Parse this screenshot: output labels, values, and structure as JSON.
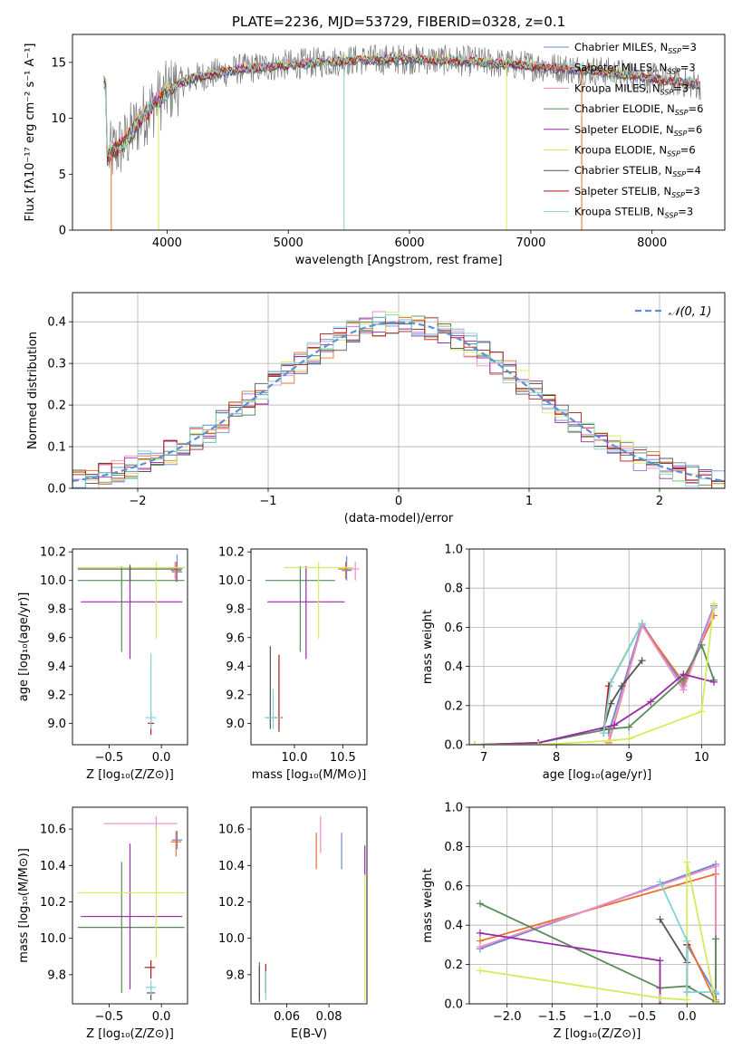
{
  "figure": {
    "title": "PLATE=2236, MJD=53729, FIBERID=0328, z=0.1"
  },
  "colors": {
    "chabrier_miles": "#6b86d6",
    "salpeter_miles": "#e8702a",
    "kroupa_miles": "#f08cc8",
    "chabrier_elodie": "#5a8a5a",
    "salpeter_elodie": "#9a2aaa",
    "kroupa_elodie": "#d4ec5a",
    "chabrier_stelib": "#555555",
    "salpeter_stelib": "#b01818",
    "kroupa_stelib": "#7fd4d4"
  },
  "chart_data": [
    {
      "id": "spectrum",
      "type": "line",
      "title": "PLATE=2236, MJD=53729, FIBERID=0328, z=0.1",
      "xlabel": "wavelength [Angstrom, rest frame]",
      "ylabel": "Flux [fλ10⁻¹⁷ erg cm⁻² s⁻¹ A⁻¹]",
      "xlim": [
        3220,
        8600
      ],
      "ylim": [
        0,
        17.5
      ],
      "xticks": [
        "4000",
        "5000",
        "6000",
        "7000",
        "8000"
      ],
      "yticks": [
        "0",
        "5",
        "10",
        "15"
      ],
      "grid": false,
      "legend_position": "top-right",
      "series": [
        {
          "name": "Chabrier MILES, N",
          "sub": "SSP",
          "suffix": "=3",
          "color": "#6b86d6"
        },
        {
          "name": "Salpeter MILES, N",
          "sub": "SSP",
          "suffix": "=3",
          "color": "#e8702a"
        },
        {
          "name": "Kroupa MILES, N",
          "sub": "SSP",
          "suffix": "=3",
          "color": "#f08cc8"
        },
        {
          "name": "Chabrier ELODIE, N",
          "sub": "SSP",
          "suffix": "=6",
          "color": "#5a8a5a"
        },
        {
          "name": "Salpeter ELODIE, N",
          "sub": "SSP",
          "suffix": "=6",
          "color": "#9a2aaa"
        },
        {
          "name": "Kroupa ELODIE, N",
          "sub": "SSP",
          "suffix": "=6",
          "color": "#d4ec5a"
        },
        {
          "name": "Chabrier STELIB, N",
          "sub": "SSP",
          "suffix": "=4",
          "color": "#555555"
        },
        {
          "name": "Salpeter STELIB, N",
          "sub": "SSP",
          "suffix": "=3",
          "color": "#b01818"
        },
        {
          "name": "Kroupa STELIB, N",
          "sub": "SSP",
          "suffix": "=3",
          "color": "#7fd4d4"
        }
      ],
      "continuum": {
        "x": [
          3500,
          3650,
          3800,
          3950,
          4100,
          4300,
          4600,
          5000,
          5500,
          6000,
          6500,
          7000,
          7500,
          8000,
          8400
        ],
        "y": [
          6.5,
          7.8,
          10.2,
          11.8,
          13.2,
          13.8,
          14.4,
          14.8,
          15.2,
          15.3,
          15.1,
          14.7,
          14.3,
          13.6,
          13.0
        ]
      },
      "dips": [
        {
          "x": 3540,
          "y": 0.0
        },
        {
          "x": 3930,
          "y": 0.0
        },
        {
          "x": 5460,
          "y": 0.0
        },
        {
          "x": 6800,
          "y": 0.0
        },
        {
          "x": 7420,
          "y": 0.0
        }
      ]
    },
    {
      "id": "residuals",
      "type": "histogram",
      "xlabel": "(data-model)/error",
      "ylabel": "Normed distribution",
      "xlim": [
        -2.5,
        2.5
      ],
      "ylim": [
        0,
        0.47
      ],
      "xticks": [
        "−2",
        "−1",
        "0",
        "1",
        "2"
      ],
      "yticks": [
        "0.0",
        "0.1",
        "0.2",
        "0.3",
        "0.4"
      ],
      "grid": true,
      "legend_position": "top-right",
      "reference": {
        "name": "𝒩(0, 1)",
        "color": "#5b8fd6"
      }
    },
    {
      "id": "age_vs_Z",
      "type": "errorbar",
      "xlabel": "Z [log₁₀(Z/Z⊙)]",
      "ylabel": "age  [log₁₀(age/yr)]",
      "xlim": [
        -0.85,
        0.25
      ],
      "ylim": [
        8.85,
        10.22
      ],
      "xticks": [
        "−0.5",
        "0.0"
      ],
      "yticks": [
        "9.0",
        "9.2",
        "9.4",
        "9.6",
        "9.8",
        "10.0",
        "10.2"
      ],
      "points": [
        {
          "color": "#6b86d6",
          "x": 0.15,
          "xerr": [
            0.05,
            0.05
          ],
          "y": 10.06,
          "yerr": [
            0.07,
            0.12
          ]
        },
        {
          "color": "#e8702a",
          "x": 0.14,
          "xerr": [
            0.05,
            0.05
          ],
          "y": 10.07,
          "yerr": [
            0.08,
            0.06
          ]
        },
        {
          "color": "#f08cc8",
          "x": 0.13,
          "xerr": [
            0.05,
            0.05
          ],
          "y": 10.09,
          "yerr": [
            0.08,
            0.04
          ]
        },
        {
          "color": "#5a8a5a",
          "x": -0.38,
          "xerr": [
            0.42,
            0.6
          ],
          "y": 10.0,
          "yerr": [
            0.5,
            0.1
          ]
        },
        {
          "color": "#9a2aaa",
          "x": -0.3,
          "xerr": [
            0.47,
            0.5
          ],
          "y": 9.85,
          "yerr": [
            0.4,
            0.25
          ]
        },
        {
          "color": "#d4ec5a",
          "x": -0.05,
          "xerr": [
            0.75,
            0.28
          ],
          "y": 10.09,
          "yerr": [
            0.5,
            0.04
          ]
        },
        {
          "color": "#555555",
          "x": -0.3,
          "xerr": [
            0.5,
            0.5
          ],
          "y": 10.08,
          "yerr": [
            0.08,
            0.03
          ]
        },
        {
          "color": "#b01818",
          "x": -0.1,
          "xerr": [
            0.03,
            0.03
          ],
          "y": 9.0,
          "yerr": [
            0.08,
            0.08
          ]
        },
        {
          "color": "#7fd4d4",
          "x": -0.1,
          "xerr": [
            0.05,
            0.05
          ],
          "y": 9.04,
          "yerr": [
            0.08,
            0.45
          ]
        }
      ]
    },
    {
      "id": "age_vs_mass",
      "type": "errorbar",
      "xlabel": "mass [log₁₀(M/M⊙)]",
      "xlim": [
        9.55,
        10.75
      ],
      "ylim": [
        8.85,
        10.22
      ],
      "xticks": [
        "10.0",
        "10.5"
      ],
      "yticks": [
        "9.0",
        "9.2",
        "9.4",
        "9.6",
        "9.8",
        "10.0",
        "10.2"
      ],
      "points": [
        {
          "color": "#6b86d6",
          "x": 10.54,
          "xerr": [
            0.05,
            0.05
          ],
          "y": 10.07,
          "yerr": [
            0.07,
            0.1
          ]
        },
        {
          "color": "#e8702a",
          "x": 10.53,
          "xerr": [
            0.08,
            0.06
          ],
          "y": 10.08,
          "yerr": [
            0.07,
            0.05
          ]
        },
        {
          "color": "#f08cc8",
          "x": 10.63,
          "xerr": [
            0.04,
            0.04
          ],
          "y": 10.08,
          "yerr": [
            0.08,
            0.05
          ]
        },
        {
          "color": "#5a8a5a",
          "x": 10.06,
          "xerr": [
            0.36,
            0.36
          ],
          "y": 10.0,
          "yerr": [
            0.5,
            0.1
          ]
        },
        {
          "color": "#9a2aaa",
          "x": 10.12,
          "xerr": [
            0.4,
            0.4
          ],
          "y": 9.85,
          "yerr": [
            0.4,
            0.25
          ]
        },
        {
          "color": "#d4ec5a",
          "x": 10.25,
          "xerr": [
            0.36,
            0.36
          ],
          "y": 10.09,
          "yerr": [
            0.5,
            0.04
          ]
        },
        {
          "color": "#555555",
          "x": 9.75,
          "xerr": [
            0.04,
            0.04
          ],
          "y": 9.04,
          "yerr": [
            0.08,
            0.5
          ]
        },
        {
          "color": "#b01818",
          "x": 9.84,
          "xerr": [
            0.06,
            0.04
          ],
          "y": 9.04,
          "yerr": [
            0.1,
            0.44
          ]
        },
        {
          "color": "#7fd4d4",
          "x": 9.78,
          "xerr": [
            0.09,
            0.09
          ],
          "y": 9.04,
          "yerr": [
            0.08,
            0.2
          ]
        }
      ]
    },
    {
      "id": "weight_vs_age",
      "type": "line",
      "xlabel": "age  [log₁₀(age/yr)]",
      "ylabel": "mass weight",
      "xlim": [
        6.8,
        10.32
      ],
      "ylim": [
        0,
        1
      ],
      "xticks": [
        "7",
        "8",
        "9",
        "10"
      ],
      "yticks": [
        "0.0",
        "0.2",
        "0.4",
        "0.6",
        "0.8",
        "1.0"
      ],
      "grid": true,
      "series": [
        {
          "color": "#6b86d6",
          "x": [
            8.72,
            9.18,
            9.75,
            10.17
          ],
          "y": [
            0.06,
            0.62,
            0.3,
            0.71
          ]
        },
        {
          "color": "#e8702a",
          "x": [
            8.72,
            9.18,
            9.75,
            10.17
          ],
          "y": [
            0.01,
            0.61,
            0.32,
            0.66
          ]
        },
        {
          "color": "#f08cc8",
          "x": [
            8.72,
            9.18,
            9.75,
            10.17
          ],
          "y": [
            0.02,
            0.61,
            0.28,
            0.7
          ]
        },
        {
          "color": "#5a8a5a",
          "x": [
            6.88,
            7.75,
            8.72,
            9.0,
            9.75,
            10.0,
            10.17
          ],
          "y": [
            0.0,
            0.01,
            0.08,
            0.09,
            0.34,
            0.51,
            0.33
          ]
        },
        {
          "color": "#9a2aaa",
          "x": [
            6.88,
            7.75,
            8.8,
            9.3,
            9.75,
            10.17
          ],
          "y": [
            0.0,
            0.01,
            0.1,
            0.22,
            0.36,
            0.32
          ]
        },
        {
          "color": "#d4ec5a",
          "x": [
            6.88,
            7.75,
            8.72,
            9.0,
            10.0,
            10.17
          ],
          "y": [
            0.0,
            0.0,
            0.02,
            0.03,
            0.17,
            0.72
          ]
        },
        {
          "color": "#555555",
          "x": [
            8.65,
            8.75,
            8.9,
            9.18
          ],
          "y": [
            0.08,
            0.21,
            0.3,
            0.43
          ]
        },
        {
          "color": "#b01818",
          "x": [
            8.65,
            8.72,
            9.18
          ],
          "y": [
            0.06,
            0.3,
            0.62
          ]
        },
        {
          "color": "#7fd4d4",
          "x": [
            8.65,
            8.75,
            9.18
          ],
          "y": [
            0.06,
            0.32,
            0.62
          ]
        }
      ]
    },
    {
      "id": "mass_vs_Z",
      "type": "errorbar",
      "xlabel": "Z [log₁₀(Z/Z⊙)]",
      "ylabel": "mass [log₁₀(M/M⊙)]",
      "xlim": [
        -0.85,
        0.25
      ],
      "ylim": [
        9.64,
        10.72
      ],
      "xticks": [
        "−0.5",
        "0.0"
      ],
      "yticks": [
        "9.8",
        "10.0",
        "10.2",
        "10.4",
        "10.6"
      ],
      "points": [
        {
          "color": "#6b86d6",
          "x": 0.15,
          "xerr": [
            0.05,
            0.05
          ],
          "y": 10.54,
          "yerr": [
            0.05,
            0.05
          ]
        },
        {
          "color": "#e8702a",
          "x": 0.14,
          "xerr": [
            0.05,
            0.05
          ],
          "y": 10.53,
          "yerr": [
            0.08,
            0.06
          ]
        },
        {
          "color": "#f08cc8",
          "x": -0.05,
          "xerr": [
            0.5,
            0.2
          ],
          "y": 10.63,
          "yerr": [
            0.04,
            0.04
          ]
        },
        {
          "color": "#5a8a5a",
          "x": -0.38,
          "xerr": [
            0.42,
            0.6
          ],
          "y": 10.06,
          "yerr": [
            0.36,
            0.36
          ]
        },
        {
          "color": "#9a2aaa",
          "x": -0.3,
          "xerr": [
            0.47,
            0.5
          ],
          "y": 10.12,
          "yerr": [
            0.4,
            0.4
          ]
        },
        {
          "color": "#d4ec5a",
          "x": -0.05,
          "xerr": [
            0.75,
            0.28
          ],
          "y": 10.25,
          "yerr": [
            0.36,
            0.36
          ]
        },
        {
          "color": "#555555",
          "x": -0.1,
          "xerr": [
            0.04,
            0.04
          ],
          "y": 9.7,
          "yerr": [
            0.04,
            0.04
          ]
        },
        {
          "color": "#b01818",
          "x": -0.1,
          "xerr": [
            0.06,
            0.04
          ],
          "y": 9.84,
          "yerr": [
            0.06,
            0.04
          ]
        },
        {
          "color": "#7fd4d4",
          "x": -0.1,
          "xerr": [
            0.05,
            0.05
          ],
          "y": 9.73,
          "yerr": [
            0.04,
            0.04
          ]
        }
      ]
    },
    {
      "id": "mass_vs_ebv",
      "type": "errorbar",
      "xlabel": "E(B-V)",
      "xlim": [
        0.043,
        0.098
      ],
      "ylim": [
        9.64,
        10.72
      ],
      "xticks": [
        "0.06",
        "0.08"
      ],
      "yticks": [
        "9.8",
        "10.0",
        "10.2",
        "10.4",
        "10.6"
      ],
      "points": [
        {
          "color": "#6b86d6",
          "x": 0.086,
          "y": 10.48,
          "yerr": [
            0.1,
            0.1
          ]
        },
        {
          "color": "#e8702a",
          "x": 0.074,
          "y": 10.48,
          "yerr": [
            0.1,
            0.1
          ]
        },
        {
          "color": "#f08cc8",
          "x": 0.076,
          "y": 10.57,
          "yerr": [
            0.1,
            0.1
          ]
        },
        {
          "color": "#5a8a5a",
          "x": 0.047,
          "y": 9.77,
          "yerr": [
            0.1,
            0.1
          ]
        },
        {
          "color": "#9a2aaa",
          "x": 0.097,
          "y": 10.43,
          "yerr": [
            0.08,
            0.08
          ]
        },
        {
          "color": "#d4ec5a",
          "x": 0.097,
          "y": 10.0,
          "yerr": [
            0.35,
            0.35
          ]
        },
        {
          "color": "#555555",
          "x": 0.047,
          "y": 9.75,
          "yerr": [
            0.1,
            0.1
          ]
        },
        {
          "color": "#b01818",
          "x": 0.05,
          "y": 9.78,
          "yerr": [
            0.08,
            0.08
          ]
        },
        {
          "color": "#7fd4d4",
          "x": 0.05,
          "y": 9.74,
          "yerr": [
            0.08,
            0.08
          ]
        }
      ]
    },
    {
      "id": "weight_vs_Z",
      "type": "line",
      "xlabel": "Z [log₁₀(Z/Z⊙)]",
      "ylabel": "mass weight",
      "xlim": [
        -2.42,
        0.42
      ],
      "ylim": [
        0,
        1
      ],
      "xticks": [
        "−2.0",
        "−1.5",
        "−1.0",
        "−0.5",
        "0.0"
      ],
      "yticks": [
        "0.0",
        "0.2",
        "0.4",
        "0.6",
        "0.8",
        "1.0"
      ],
      "grid": true,
      "series": [
        {
          "color": "#6b86d6",
          "x": [
            -2.3,
            0.32,
            0.32,
            0.0
          ],
          "y": [
            0.28,
            0.71,
            0.05,
            0.3
          ]
        },
        {
          "color": "#e8702a",
          "x": [
            -2.3,
            0.32,
            0.32,
            0.0
          ],
          "y": [
            0.32,
            0.66,
            0.01,
            0.32
          ]
        },
        {
          "color": "#f08cc8",
          "x": [
            -2.3,
            0.32,
            0.32
          ],
          "y": [
            0.29,
            0.7,
            0.02
          ]
        },
        {
          "color": "#5a8a5a",
          "x": [
            -2.3,
            -0.3,
            0.0,
            0.32,
            0.32
          ],
          "y": [
            0.51,
            0.08,
            0.09,
            0.01,
            0.33
          ]
        },
        {
          "color": "#9a2aaa",
          "x": [
            -2.3,
            -0.3,
            -0.3
          ],
          "y": [
            0.36,
            0.22,
            0.0
          ]
        },
        {
          "color": "#d4ec5a",
          "x": [
            -2.3,
            -0.3,
            0.0,
            0.0,
            0.32
          ],
          "y": [
            0.17,
            0.03,
            0.02,
            0.72,
            0.0
          ]
        },
        {
          "color": "#555555",
          "x": [
            -0.3,
            0.0,
            0.0
          ],
          "y": [
            0.43,
            0.21,
            0.3
          ]
        },
        {
          "color": "#b01818",
          "x": [
            0.0,
            0.0
          ],
          "y": [
            0.06,
            0.3
          ]
        },
        {
          "color": "#7fd4d4",
          "x": [
            -0.3,
            0.0,
            0.0,
            0.32
          ],
          "y": [
            0.62,
            0.32,
            0.06,
            0.06
          ]
        }
      ]
    }
  ]
}
